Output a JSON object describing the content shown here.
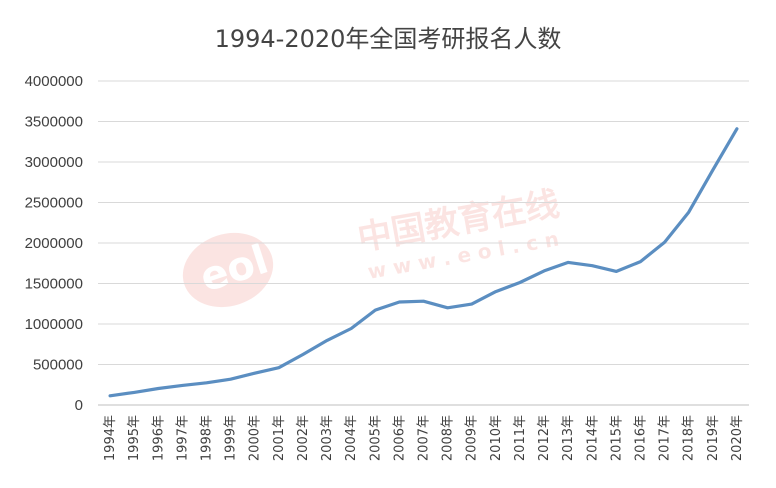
{
  "chart_data": {
    "type": "line",
    "title": "1994-2020年全国考研报名人数",
    "xlabel": "",
    "ylabel": "",
    "ylim": [
      0,
      4000000
    ],
    "yticks": [
      0,
      500000,
      1000000,
      1500000,
      2000000,
      2500000,
      3000000,
      3500000,
      4000000
    ],
    "grid": true,
    "legend": "none",
    "categories": [
      "1994年",
      "1995年",
      "1996年",
      "1997年",
      "1998年",
      "1999年",
      "2000年",
      "2001年",
      "2002年",
      "2003年",
      "2004年",
      "2005年",
      "2006年",
      "2007年",
      "2008年",
      "2009年",
      "2010年",
      "2011年",
      "2012年",
      "2013年",
      "2014年",
      "2015年",
      "2016年",
      "2017年",
      "2018年",
      "2019年",
      "2020年"
    ],
    "series": [
      {
        "values": [
          113000,
          155000,
          204000,
          242000,
          274000,
          319000,
          392000,
          460000,
          624000,
          797000,
          945000,
          1172000,
          1272000,
          1282000,
          1200000,
          1246000,
          1400000,
          1512000,
          1656000,
          1760000,
          1720000,
          1649000,
          1770000,
          2010000,
          2380000,
          2900000,
          3410000
        ]
      }
    ],
    "line_color": "#5b8ec1"
  },
  "watermark": {
    "text": "中国教育在线",
    "subtext": "w w w . e o l . c n",
    "logo_text": "eol",
    "color": "#e84a3c"
  }
}
